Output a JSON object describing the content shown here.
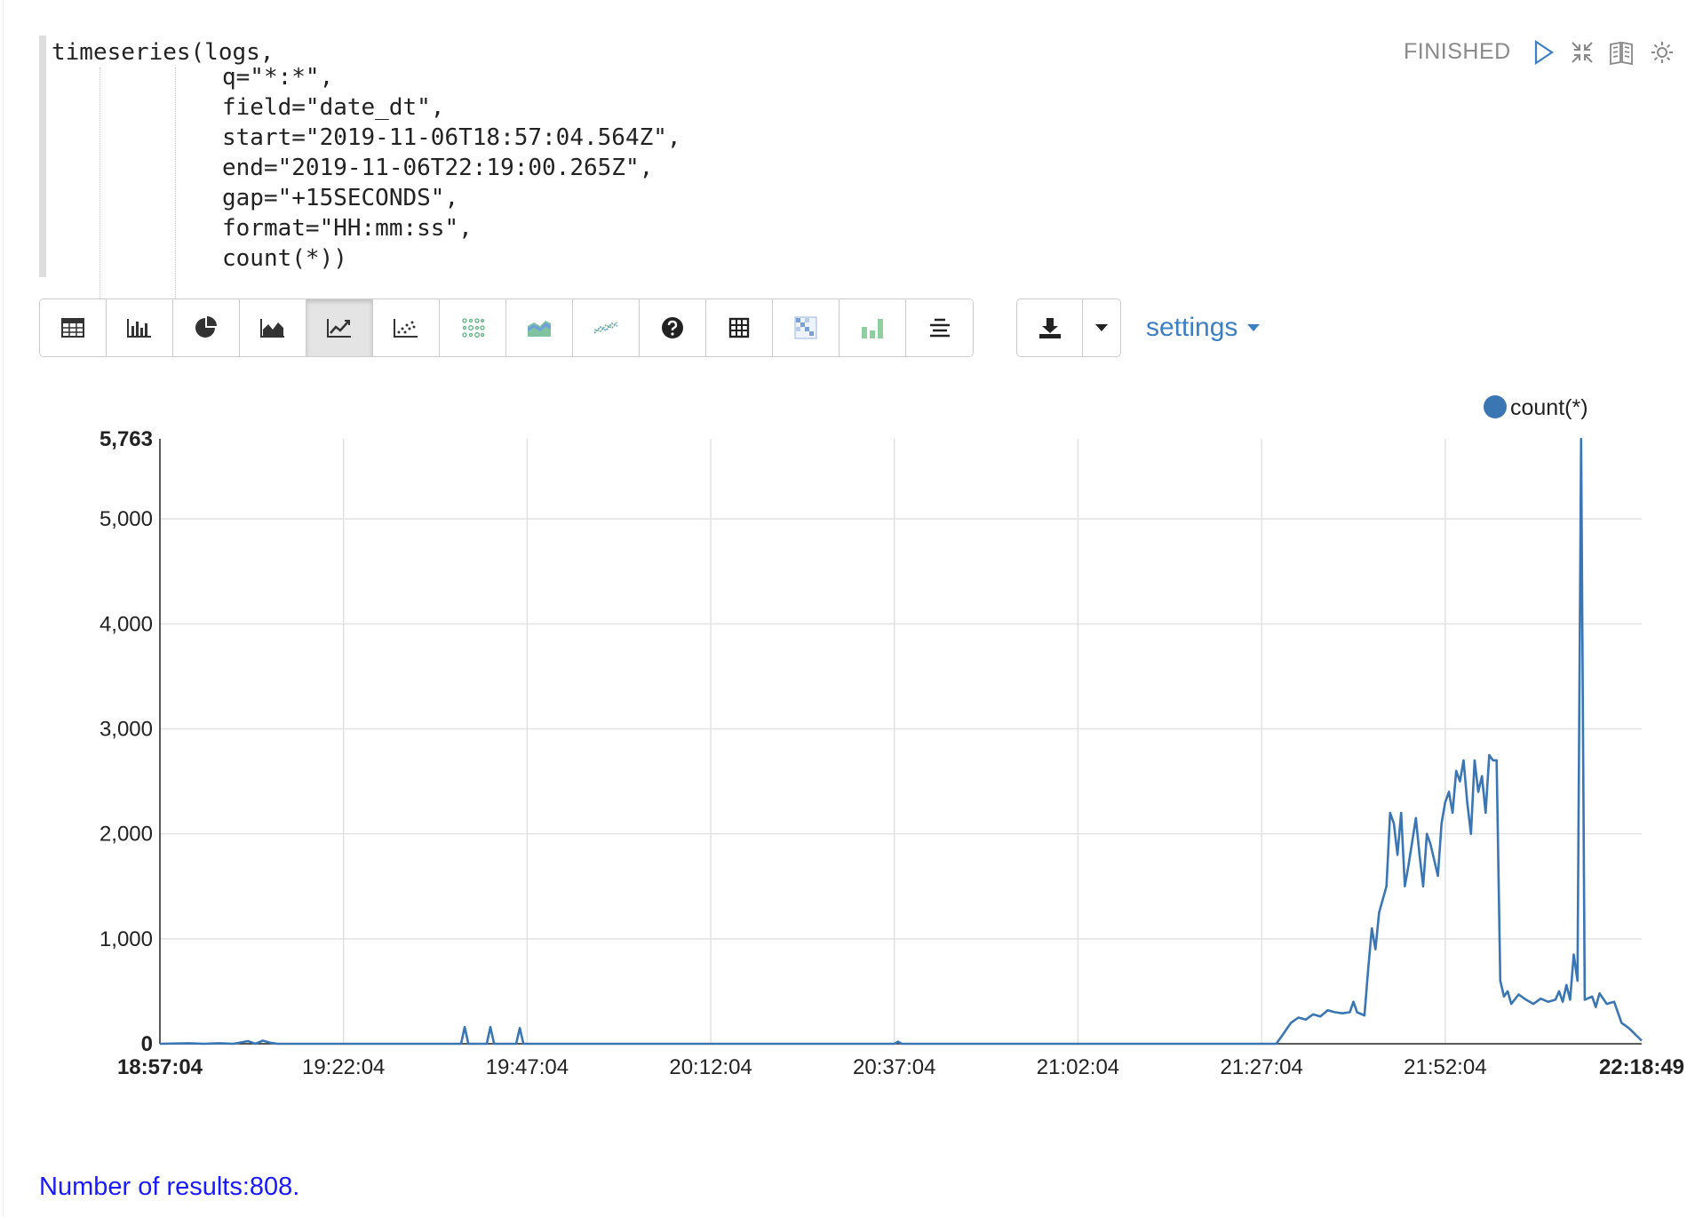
{
  "paragraph": {
    "status": "FINISHED",
    "code_lines": [
      "timeseries(logs,",
      "q=\"*:*\",",
      "field=\"date_dt\",",
      "start=\"2019-11-06T18:57:04.564Z\",",
      "end=\"2019-11-06T22:19:00.265Z\",",
      "gap=\"+15SECONDS\",",
      "format=\"HH:mm:ss\",",
      "count(*))"
    ],
    "icons": [
      "run-icon",
      "collapse-icon",
      "book-icon",
      "gear-icon"
    ]
  },
  "toolbar": {
    "buttons": [
      "table-icon",
      "bar-chart-icon",
      "pie-chart-icon",
      "area-chart-icon",
      "line-chart-icon",
      "scatter-icon",
      "bubble-icon",
      "stacked-area-icon",
      "multi-line-icon",
      "help-icon",
      "grid-icon",
      "heatmap-icon",
      "histogram-icon",
      "align-icon"
    ],
    "active": "line-chart-icon",
    "download_icon": "download-icon",
    "settings_label": "settings"
  },
  "chart_data": {
    "type": "line",
    "series": [
      {
        "name": "count(*)",
        "color": "#3a76b3"
      }
    ],
    "legend_position": "top-right",
    "ylim": [
      0,
      5763
    ],
    "y_ticks": [
      "0",
      "1,000",
      "2,000",
      "3,000",
      "4,000",
      "5,000",
      "5,763"
    ],
    "x_ticks": [
      "18:57:04",
      "19:22:04",
      "19:47:04",
      "20:12:04",
      "20:37:04",
      "21:02:04",
      "21:27:04",
      "21:52:04",
      "22:18:49"
    ],
    "x_range_minutes": [
      0,
      201.75
    ],
    "points": [
      [
        0,
        0
      ],
      [
        4,
        5
      ],
      [
        6,
        0
      ],
      [
        8,
        5
      ],
      [
        10,
        0
      ],
      [
        12,
        25
      ],
      [
        13,
        0
      ],
      [
        14,
        30
      ],
      [
        15,
        10
      ],
      [
        16,
        0
      ],
      [
        41.0,
        0
      ],
      [
        41.5,
        160
      ],
      [
        42,
        0
      ],
      [
        44.5,
        0
      ],
      [
        45,
        160
      ],
      [
        45.5,
        0
      ],
      [
        48.5,
        0
      ],
      [
        49,
        150
      ],
      [
        49.5,
        0
      ],
      [
        100,
        0
      ],
      [
        100.5,
        20
      ],
      [
        101,
        0
      ],
      [
        152,
        0
      ],
      [
        153,
        100
      ],
      [
        154,
        200
      ],
      [
        155,
        250
      ],
      [
        156,
        230
      ],
      [
        157,
        280
      ],
      [
        158,
        260
      ],
      [
        159,
        320
      ],
      [
        160,
        300
      ],
      [
        161,
        290
      ],
      [
        162,
        300
      ],
      [
        162.5,
        400
      ],
      [
        163,
        300
      ],
      [
        164,
        270
      ],
      [
        164.5,
        700
      ],
      [
        165,
        1100
      ],
      [
        165.5,
        900
      ],
      [
        166,
        1250
      ],
      [
        167,
        1500
      ],
      [
        167.5,
        2200
      ],
      [
        168,
        2100
      ],
      [
        168.5,
        1800
      ],
      [
        169,
        2200
      ],
      [
        169.5,
        1500
      ],
      [
        170,
        1700
      ],
      [
        171,
        2150
      ],
      [
        171.5,
        1800
      ],
      [
        172,
        1500
      ],
      [
        172.5,
        2000
      ],
      [
        173,
        1900
      ],
      [
        174,
        1600
      ],
      [
        174.5,
        2100
      ],
      [
        175,
        2300
      ],
      [
        175.5,
        2400
      ],
      [
        176,
        2200
      ],
      [
        176.5,
        2600
      ],
      [
        177,
        2500
      ],
      [
        177.5,
        2700
      ],
      [
        178,
        2300
      ],
      [
        178.5,
        2000
      ],
      [
        179,
        2700
      ],
      [
        179.5,
        2400
      ],
      [
        180,
        2550
      ],
      [
        180.5,
        2200
      ],
      [
        181,
        2750
      ],
      [
        181.5,
        2700
      ],
      [
        182,
        2700
      ],
      [
        182.5,
        600
      ],
      [
        183,
        450
      ],
      [
        183.5,
        500
      ],
      [
        184,
        380
      ],
      [
        185,
        470
      ],
      [
        186,
        420
      ],
      [
        187,
        380
      ],
      [
        188,
        430
      ],
      [
        189,
        400
      ],
      [
        190,
        420
      ],
      [
        190.5,
        500
      ],
      [
        191,
        400
      ],
      [
        191.5,
        560
      ],
      [
        192,
        420
      ],
      [
        192.5,
        850
      ],
      [
        193,
        600
      ],
      [
        193.5,
        5763
      ],
      [
        194,
        420
      ],
      [
        195,
        450
      ],
      [
        195.5,
        350
      ],
      [
        196,
        480
      ],
      [
        197,
        380
      ],
      [
        198,
        400
      ],
      [
        198.5,
        300
      ],
      [
        199,
        200
      ],
      [
        200,
        150
      ],
      [
        201,
        80
      ],
      [
        201.75,
        30
      ]
    ]
  },
  "results": {
    "label": "Number of results:",
    "count": "808."
  }
}
